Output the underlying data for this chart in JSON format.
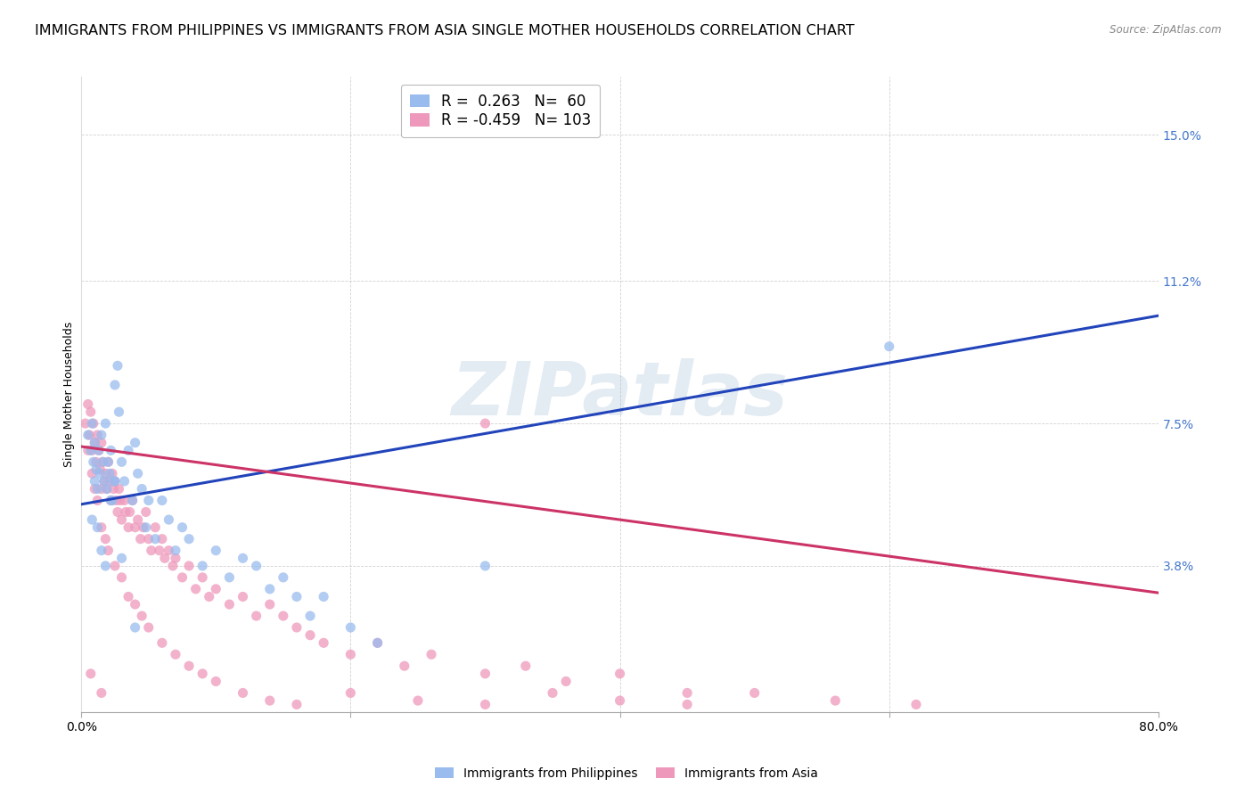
{
  "title": "IMMIGRANTS FROM PHILIPPINES VS IMMIGRANTS FROM ASIA SINGLE MOTHER HOUSEHOLDS CORRELATION CHART",
  "source": "Source: ZipAtlas.com",
  "ylabel": "Single Mother Households",
  "xlim": [
    0.0,
    0.8
  ],
  "ylim": [
    0.0,
    0.165
  ],
  "ytick_positions": [
    0.038,
    0.075,
    0.112,
    0.15
  ],
  "ytick_labels": [
    "3.8%",
    "7.5%",
    "11.2%",
    "15.0%"
  ],
  "blue_color": "#99bbee",
  "pink_color": "#ee99bb",
  "blue_label": "Immigrants from Philippines",
  "pink_label": "Immigrants from Asia",
  "blue_R": "0.263",
  "blue_N": "60",
  "pink_R": "-0.459",
  "pink_N": "103",
  "watermark": "ZIPatlas",
  "watermark_color": "#9bb8d4",
  "blue_line_color": "#2244bb",
  "pink_line_color": "#cc3366",
  "title_fontsize": 11.5,
  "axis_label_fontsize": 9,
  "tick_fontsize": 10,
  "blue_scatter_x": [
    0.005,
    0.007,
    0.008,
    0.009,
    0.01,
    0.01,
    0.011,
    0.012,
    0.013,
    0.014,
    0.015,
    0.016,
    0.017,
    0.018,
    0.019,
    0.02,
    0.021,
    0.022,
    0.023,
    0.024,
    0.025,
    0.027,
    0.028,
    0.03,
    0.032,
    0.035,
    0.038,
    0.04,
    0.042,
    0.045,
    0.048,
    0.05,
    0.055,
    0.06,
    0.065,
    0.07,
    0.075,
    0.08,
    0.09,
    0.1,
    0.11,
    0.12,
    0.13,
    0.14,
    0.15,
    0.16,
    0.17,
    0.18,
    0.2,
    0.22,
    0.008,
    0.012,
    0.015,
    0.018,
    0.022,
    0.025,
    0.03,
    0.04,
    0.3,
    0.6
  ],
  "blue_scatter_y": [
    0.072,
    0.068,
    0.075,
    0.065,
    0.07,
    0.06,
    0.063,
    0.058,
    0.068,
    0.062,
    0.072,
    0.065,
    0.06,
    0.075,
    0.058,
    0.065,
    0.062,
    0.068,
    0.055,
    0.06,
    0.085,
    0.09,
    0.078,
    0.065,
    0.06,
    0.068,
    0.055,
    0.07,
    0.062,
    0.058,
    0.048,
    0.055,
    0.045,
    0.055,
    0.05,
    0.042,
    0.048,
    0.045,
    0.038,
    0.042,
    0.035,
    0.04,
    0.038,
    0.032,
    0.035,
    0.03,
    0.025,
    0.03,
    0.022,
    0.018,
    0.05,
    0.048,
    0.042,
    0.038,
    0.055,
    0.06,
    0.04,
    0.022,
    0.038,
    0.095
  ],
  "pink_scatter_x": [
    0.003,
    0.005,
    0.006,
    0.007,
    0.008,
    0.009,
    0.01,
    0.011,
    0.012,
    0.013,
    0.014,
    0.015,
    0.015,
    0.016,
    0.017,
    0.018,
    0.019,
    0.02,
    0.021,
    0.022,
    0.023,
    0.024,
    0.025,
    0.026,
    0.027,
    0.028,
    0.029,
    0.03,
    0.032,
    0.033,
    0.035,
    0.036,
    0.038,
    0.04,
    0.042,
    0.044,
    0.046,
    0.048,
    0.05,
    0.052,
    0.055,
    0.058,
    0.06,
    0.062,
    0.065,
    0.068,
    0.07,
    0.075,
    0.08,
    0.085,
    0.09,
    0.095,
    0.1,
    0.11,
    0.12,
    0.13,
    0.14,
    0.15,
    0.16,
    0.17,
    0.18,
    0.2,
    0.22,
    0.24,
    0.26,
    0.3,
    0.33,
    0.36,
    0.4,
    0.45,
    0.005,
    0.008,
    0.01,
    0.012,
    0.015,
    0.018,
    0.02,
    0.025,
    0.03,
    0.035,
    0.04,
    0.045,
    0.05,
    0.06,
    0.07,
    0.08,
    0.09,
    0.1,
    0.12,
    0.14,
    0.16,
    0.2,
    0.25,
    0.3,
    0.35,
    0.4,
    0.45,
    0.5,
    0.56,
    0.62,
    0.007,
    0.015,
    0.3
  ],
  "pink_scatter_y": [
    0.075,
    0.08,
    0.072,
    0.078,
    0.068,
    0.075,
    0.07,
    0.065,
    0.072,
    0.068,
    0.063,
    0.07,
    0.058,
    0.065,
    0.06,
    0.062,
    0.058,
    0.065,
    0.06,
    0.055,
    0.062,
    0.058,
    0.06,
    0.055,
    0.052,
    0.058,
    0.055,
    0.05,
    0.055,
    0.052,
    0.048,
    0.052,
    0.055,
    0.048,
    0.05,
    0.045,
    0.048,
    0.052,
    0.045,
    0.042,
    0.048,
    0.042,
    0.045,
    0.04,
    0.042,
    0.038,
    0.04,
    0.035,
    0.038,
    0.032,
    0.035,
    0.03,
    0.032,
    0.028,
    0.03,
    0.025,
    0.028,
    0.025,
    0.022,
    0.02,
    0.018,
    0.015,
    0.018,
    0.012,
    0.015,
    0.01,
    0.012,
    0.008,
    0.01,
    0.005,
    0.068,
    0.062,
    0.058,
    0.055,
    0.048,
    0.045,
    0.042,
    0.038,
    0.035,
    0.03,
    0.028,
    0.025,
    0.022,
    0.018,
    0.015,
    0.012,
    0.01,
    0.008,
    0.005,
    0.003,
    0.002,
    0.005,
    0.003,
    0.002,
    0.005,
    0.003,
    0.002,
    0.005,
    0.003,
    0.002,
    0.01,
    0.005,
    0.075
  ],
  "blue_trend_x0": 0.0,
  "blue_trend_x1": 0.8,
  "blue_trend_y0": 0.054,
  "blue_trend_y1": 0.103,
  "pink_trend_x0": 0.0,
  "pink_trend_x1": 0.8,
  "pink_trend_y0": 0.069,
  "pink_trend_y1": 0.031
}
